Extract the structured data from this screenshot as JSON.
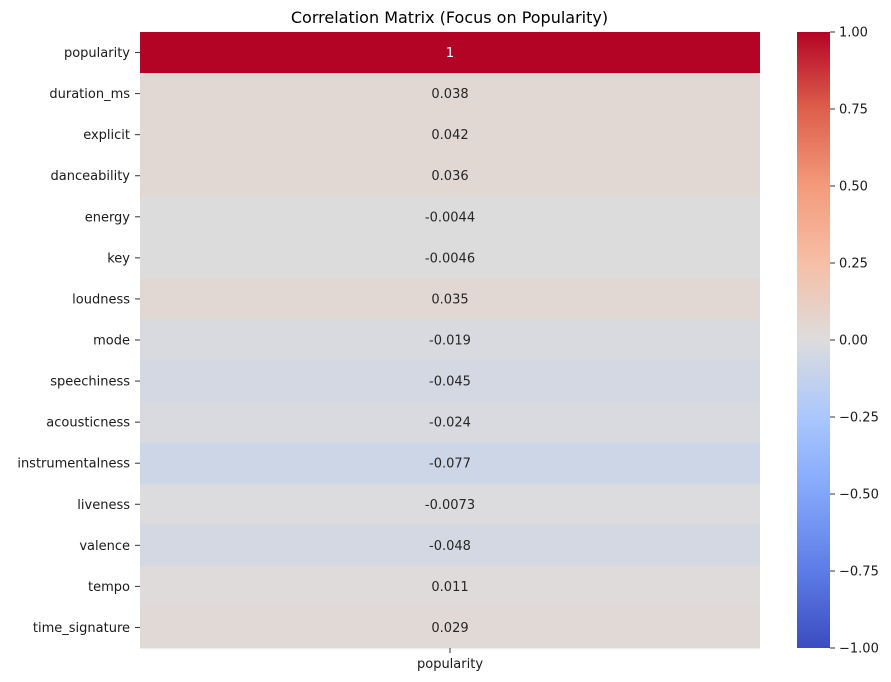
{
  "chart_data": {
    "type": "heatmap",
    "title": "Correlation Matrix (Focus on Popularity)",
    "columns": [
      "popularity"
    ],
    "rows": [
      "popularity",
      "duration_ms",
      "explicit",
      "danceability",
      "energy",
      "key",
      "loudness",
      "mode",
      "speechiness",
      "acousticness",
      "instrumentalness",
      "liveness",
      "valence",
      "tempo",
      "time_signature"
    ],
    "values": [
      1,
      0.038,
      0.042,
      0.036,
      -0.0044,
      -0.0046,
      0.035,
      -0.019,
      -0.045,
      -0.024,
      -0.077,
      -0.0073,
      -0.048,
      0.011,
      0.029
    ],
    "annotations": [
      "1",
      "0.038",
      "0.042",
      "0.036",
      "-0.0044",
      "-0.0046",
      "0.035",
      "-0.019",
      "-0.045",
      "-0.024",
      "-0.077",
      "-0.0073",
      "-0.048",
      "0.011",
      "0.029"
    ],
    "colormap": "coolwarm",
    "vmin": -1.0,
    "vmax": 1.0,
    "colorbar_ticks": [
      "1.00",
      "0.75",
      "0.50",
      "0.25",
      "0.00",
      "−0.25",
      "−0.50",
      "−0.75",
      "−1.00"
    ],
    "colorbar_tick_values": [
      1.0,
      0.75,
      0.5,
      0.25,
      0.0,
      -0.25,
      -0.5,
      -0.75,
      -1.0
    ]
  }
}
